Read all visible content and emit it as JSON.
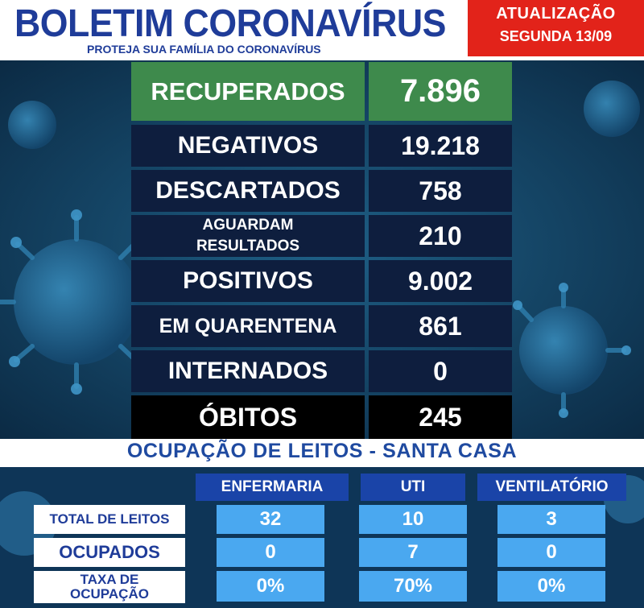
{
  "header": {
    "title": "BOLETIM CORONAVÍRUS",
    "subtitle": "PROTEJA SUA FAMÍLIA DO CORONAVÍRUS",
    "update_line1": "ATUALIZAÇÃO",
    "update_line2": "SEGUNDA 13/09"
  },
  "stats": {
    "recuperados": {
      "label": "RECUPERADOS",
      "value": "7.896"
    },
    "negativos": {
      "label": "NEGATIVOS",
      "value": "19.218"
    },
    "descartados": {
      "label": "DESCARTADOS",
      "value": "758"
    },
    "aguardam": {
      "label_line1": "AGUARDAM",
      "label_line2": "RESULTADOS",
      "value": "210"
    },
    "positivos": {
      "label": "POSITIVOS",
      "value": "9.002"
    },
    "quarentena": {
      "label": "EM QUARENTENA",
      "value": "861"
    },
    "internados": {
      "label": "INTERNADOS",
      "value": "0"
    },
    "obitos": {
      "label": "ÓBITOS",
      "value": "245"
    }
  },
  "hospital": {
    "title": "OCUPAÇÃO DE LEITOS - SANTA CASA",
    "columns": {
      "enfermaria": "ENFERMARIA",
      "uti": "UTI",
      "ventilatorio": "VENTILATÓRIO"
    },
    "rows": {
      "total": {
        "label": "TOTAL DE LEITOS",
        "enfermaria": "32",
        "uti": "10",
        "ventilatorio": "3"
      },
      "ocupados": {
        "label": "OCUPADOS",
        "enfermaria": "0",
        "uti": "7",
        "ventilatorio": "0"
      },
      "taxa": {
        "label_line1": "TAXA DE",
        "label_line2": "OCUPAÇÃO",
        "enfermaria": "0%",
        "uti": "70%",
        "ventilatorio": "0%"
      }
    }
  },
  "colors": {
    "brand_blue": "#1f3c99",
    "alert_red": "#e2231a",
    "recovered_green": "#3e8a4c",
    "cell_blue": "#4aa8f0",
    "header_blue": "#1a44a8"
  }
}
